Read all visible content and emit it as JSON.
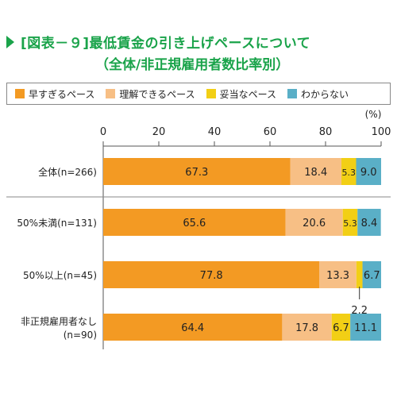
{
  "title": {
    "line1": "[図表－９]最低賃金の引き上げペースについて",
    "line2": "（全体/非正規雇用者数比率別）"
  },
  "colors": {
    "title": "#1aa34a",
    "series": [
      "#f39a23",
      "#f7bf85",
      "#f2cf15",
      "#5aafc7"
    ]
  },
  "chart_data": {
    "type": "bar",
    "orientation": "horizontal",
    "stacked": true,
    "unit_label": "(%)",
    "xlim": [
      0,
      100
    ],
    "ticks": [
      "0",
      "20",
      "40",
      "60",
      "80",
      "100"
    ],
    "grid": false,
    "legend_position": "top",
    "categories": [
      [
        "全体(n=266)"
      ],
      [
        "50%未満(n=131)"
      ],
      [
        "50%以上(n=45)"
      ],
      [
        "非正規雇用者なし",
        "(n=90)"
      ]
    ],
    "series": [
      {
        "name": "早すぎるペース",
        "values": [
          67.3,
          65.6,
          77.8,
          64.4
        ]
      },
      {
        "name": "理解できるペース",
        "values": [
          18.4,
          20.6,
          13.3,
          17.8
        ]
      },
      {
        "name": "妥当なペース",
        "values": [
          5.3,
          5.3,
          2.2,
          6.7
        ]
      },
      {
        "name": "わからない",
        "values": [
          9.0,
          8.4,
          6.7,
          11.1
        ]
      }
    ],
    "labels": [
      [
        "67.3",
        "18.4",
        "5.3",
        "9.0"
      ],
      [
        "65.6",
        "20.6",
        "5.3",
        "8.4"
      ],
      [
        "77.8",
        "13.3",
        "2.2",
        "6.7"
      ],
      [
        "64.4",
        "17.8",
        "6.7",
        "11.1"
      ]
    ],
    "external_labels": [
      [
        false,
        false,
        false,
        false
      ],
      [
        false,
        false,
        false,
        false
      ],
      [
        false,
        false,
        true,
        false
      ],
      [
        false,
        false,
        false,
        false
      ]
    ]
  }
}
